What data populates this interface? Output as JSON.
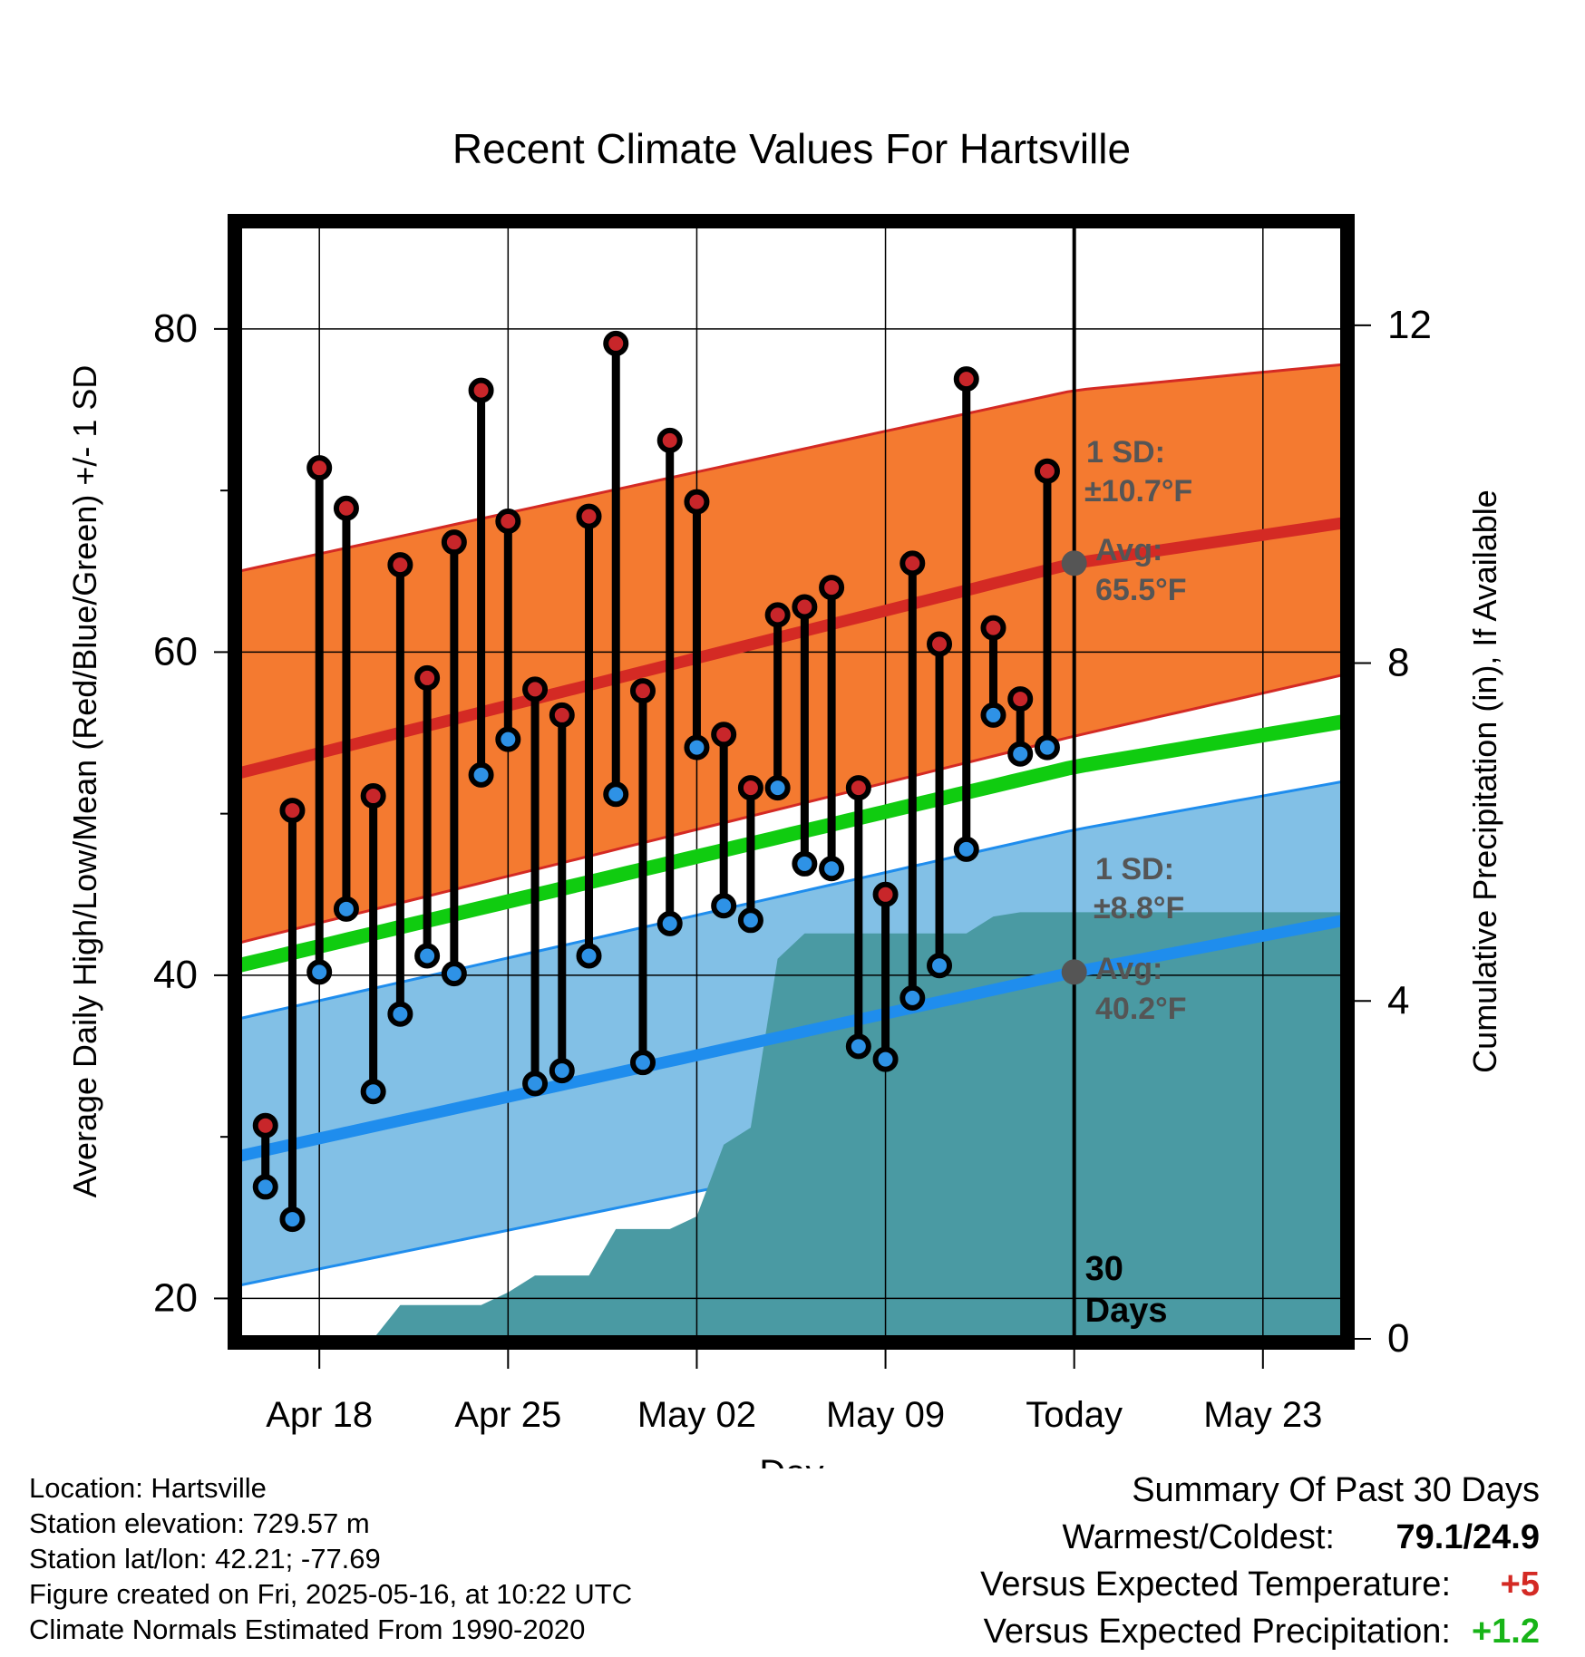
{
  "chart_data": {
    "type": "scatter",
    "title": "Recent Climate Values For Hartsville",
    "xlabel": "Day",
    "ylabel_left": "Average Daily High/Low/Mean (Red/Blue/Green) +/- 1 SD",
    "ylabel_right": "Cumulative Precipitation (in), If Available",
    "x_tick_labels": [
      "Apr 18",
      "Apr 25",
      "May 02",
      "May 09",
      "Today",
      "May 23"
    ],
    "x_tick_dates": [
      "2025-04-18",
      "2025-04-25",
      "2025-05-02",
      "2025-05-09",
      "2025-05-16",
      "2025-05-23"
    ],
    "xlim": [
      "2025-04-15",
      "2025-05-26"
    ],
    "ylim": [
      17.5,
      86.5
    ],
    "y_ticks": [
      20,
      40,
      60,
      80
    ],
    "y2lim": [
      0,
      13.2
    ],
    "y2_ticks": [
      0,
      4,
      8,
      12
    ],
    "grid": true,
    "today": "2025-05-16",
    "period_label": [
      "30",
      "Days"
    ],
    "daily": {
      "dates": [
        "2025-04-16",
        "2025-04-17",
        "2025-04-18",
        "2025-04-19",
        "2025-04-20",
        "2025-04-21",
        "2025-04-22",
        "2025-04-23",
        "2025-04-24",
        "2025-04-25",
        "2025-04-26",
        "2025-04-27",
        "2025-04-28",
        "2025-04-29",
        "2025-04-30",
        "2025-05-01",
        "2025-05-02",
        "2025-05-03",
        "2025-05-04",
        "2025-05-05",
        "2025-05-06",
        "2025-05-07",
        "2025-05-08",
        "2025-05-09",
        "2025-05-10",
        "2025-05-11",
        "2025-05-12",
        "2025-05-13",
        "2025-05-14",
        "2025-05-15"
      ],
      "high": [
        30.7,
        50.2,
        71.4,
        68.9,
        51.1,
        65.4,
        58.4,
        66.8,
        76.2,
        68.1,
        57.7,
        56.1,
        68.4,
        79.1,
        57.6,
        73.1,
        69.3,
        54.9,
        51.6,
        62.3,
        62.8,
        64.0,
        51.6,
        45.0,
        65.5,
        60.5,
        76.9,
        61.5,
        57.1,
        71.2
      ],
      "low": [
        26.9,
        24.9,
        40.2,
        44.1,
        32.8,
        37.6,
        41.2,
        40.1,
        52.4,
        54.6,
        33.3,
        34.1,
        41.2,
        51.2,
        34.6,
        43.2,
        54.1,
        44.3,
        43.4,
        51.6,
        46.9,
        46.6,
        35.6,
        34.8,
        38.6,
        40.6,
        47.8,
        56.1,
        53.7,
        54.1
      ]
    },
    "normals": {
      "dates": [
        "2025-04-15",
        "2025-05-16",
        "2025-05-26"
      ],
      "high_avg": [
        52.5,
        65.5,
        68.0
      ],
      "high_upper": [
        65.0,
        76.2,
        77.8
      ],
      "high_lower": [
        42.0,
        54.8,
        58.6
      ],
      "low_avg": [
        28.8,
        40.2,
        43.4
      ],
      "low_upper": [
        37.3,
        49.0,
        52.0
      ],
      "low_lower": [
        20.8,
        31.4,
        35.4
      ],
      "mean_avg": [
        40.6,
        52.9,
        55.7
      ]
    },
    "annotations": {
      "high": {
        "sd_label": "1 SD:",
        "sd_value": "±10.7°F",
        "avg_label": "Avg:",
        "avg_value": "65.5°F"
      },
      "low": {
        "sd_label": "1 SD:",
        "sd_value": "±8.8°F",
        "avg_label": "Avg:",
        "avg_value": "40.2°F"
      }
    },
    "precipitation": {
      "dates": [
        "2025-04-18",
        "2025-04-19",
        "2025-04-20",
        "2025-04-21",
        "2025-04-22",
        "2025-04-23",
        "2025-04-24",
        "2025-04-25",
        "2025-04-26",
        "2025-04-27",
        "2025-04-28",
        "2025-04-29",
        "2025-04-30",
        "2025-05-01",
        "2025-05-02",
        "2025-05-03",
        "2025-05-04",
        "2025-05-05",
        "2025-05-06",
        "2025-05-07",
        "2025-05-08",
        "2025-05-09",
        "2025-05-10",
        "2025-05-11",
        "2025-05-12",
        "2025-05-13",
        "2025-05-14",
        "2025-05-26"
      ],
      "cumulative": [
        0,
        0,
        0,
        0.4,
        0.4,
        0.4,
        0.4,
        0.55,
        0.75,
        0.75,
        0.75,
        1.3,
        1.3,
        1.3,
        1.45,
        2.3,
        2.5,
        4.5,
        4.8,
        4.8,
        4.8,
        4.8,
        4.8,
        4.8,
        4.8,
        5.0,
        5.05,
        5.05
      ]
    },
    "colors": {
      "high_band": "#f47a30",
      "high_line": "#d42a24",
      "low_band": "#82c0e6",
      "low_line": "#1f8ded",
      "mean_line": "#10cc10",
      "precip": "#4a9aa3",
      "high_dot": "#c8262a",
      "low_dot": "#2e92e6",
      "annotation": "#555555"
    }
  },
  "footer": {
    "location": "Location: Hartsville",
    "elevation": "Station elevation: 729.57 m",
    "latlon": "Station lat/lon: 42.21; -77.69",
    "created": "Figure created on Fri, 2025-05-16, at 10:22 UTC",
    "normals": "Climate Normals Estimated From 1990-2020"
  },
  "summary": {
    "title": "Summary Of Past 30 Days",
    "warmest_label": "Warmest/Coldest:",
    "warmest_value": "79.1/24.9",
    "temp_label": "Versus Expected Temperature:",
    "temp_value": "+5",
    "temp_color": "#d42a24",
    "precip_label": "Versus Expected Precipitation:",
    "precip_value": "+1.2",
    "precip_color": "#18b418"
  }
}
